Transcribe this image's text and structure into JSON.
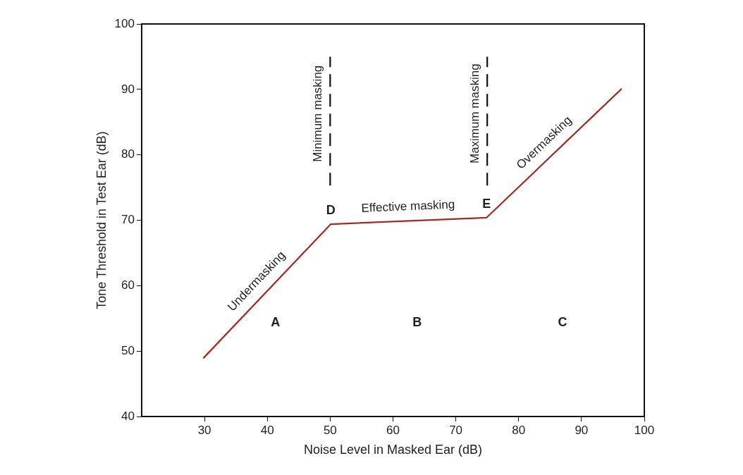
{
  "chart_data": {
    "type": "line",
    "xlabel": "Noise Level in Masked Ear (dB)",
    "ylabel": "Tone Threshold in Test Ear (dB)",
    "xlim": [
      20,
      100
    ],
    "xticks": [
      30,
      40,
      50,
      60,
      70,
      80,
      90,
      100
    ],
    "ylim": [
      40,
      100
    ],
    "yticks": [
      40,
      50,
      60,
      70,
      80,
      90,
      100
    ],
    "grid": false,
    "legend": false,
    "marker": "none",
    "series": [
      {
        "color": "#a52a22",
        "x": [
          29.8,
          50.1,
          74.9,
          96.4
        ],
        "values": [
          48.9,
          69.4,
          70.4,
          90.1
        ],
        "line_style": "solid"
      },
      {
        "color": "#111111",
        "x": [
          50,
          50
        ],
        "values": [
          75.3,
          95
        ],
        "line_style": "dashed"
      },
      {
        "color": "#111111",
        "x": [
          75,
          75
        ],
        "values": [
          75.3,
          95
        ],
        "line_style": "dashed"
      }
    ],
    "annotations": [
      {
        "text": "Minimum masking",
        "x": 50,
        "y": 86.3
      },
      {
        "text": "Maximum masking",
        "x": 75,
        "y": 86.3
      },
      {
        "text": "D",
        "x": 50.1,
        "y": 69.4
      },
      {
        "text": "E",
        "x": 74.9,
        "y": 70.4
      },
      "Undermasking",
      "Effective masking",
      "Overmasking",
      "A",
      "B",
      "C"
    ]
  }
}
